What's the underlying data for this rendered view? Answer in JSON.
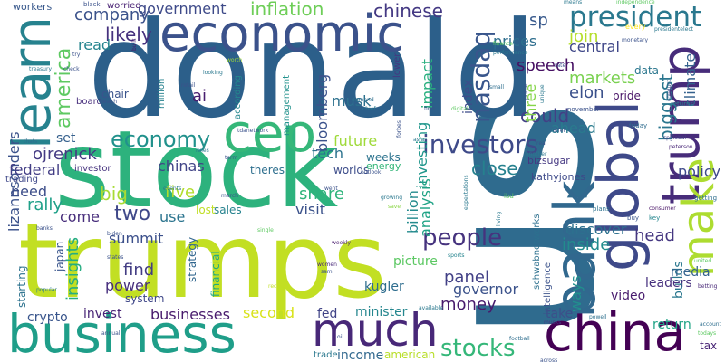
{
  "words": [
    {
      "text": "us",
      "color": "#2f6b8e"
    },
    {
      "text": "donald",
      "color": "#2c5f8a"
    },
    {
      "text": "stock",
      "color": "#2db27d"
    },
    {
      "text": "trumps",
      "color": "#c2df23"
    },
    {
      "text": "business",
      "color": "#1f9e89"
    },
    {
      "text": "economic",
      "color": "#3b528b"
    },
    {
      "text": "china",
      "color": "#440154"
    },
    {
      "text": "much",
      "color": "#482878"
    },
    {
      "text": "global",
      "color": "#3e4989"
    },
    {
      "text": "bank",
      "color": "#31688e"
    },
    {
      "text": "ceo",
      "color": "#35b779"
    },
    {
      "text": "learn",
      "color": "#26828e"
    },
    {
      "text": "trump",
      "color": "#472c7a"
    },
    {
      "text": "make",
      "color": "#addc30"
    },
    {
      "text": "president",
      "color": "#2a788e"
    },
    {
      "text": "economy",
      "color": "#21918c"
    },
    {
      "text": "investors",
      "color": "#3e4a89"
    },
    {
      "text": "people",
      "color": "#46337e"
    },
    {
      "text": "stocks",
      "color": "#35b779"
    },
    {
      "text": "nasdaq",
      "color": "#39568c"
    },
    {
      "text": "america",
      "color": "#5ec962"
    },
    {
      "text": "government",
      "color": "#3e4a89"
    },
    {
      "text": "inflation",
      "color": "#6ece58"
    },
    {
      "text": "chinese",
      "color": "#443983"
    },
    {
      "text": "company",
      "color": "#3b528b"
    },
    {
      "text": "sp",
      "color": "#38598c"
    },
    {
      "text": "likely",
      "color": "#46327e"
    },
    {
      "text": "join",
      "color": "#b5de2b"
    },
    {
      "text": "read",
      "color": "#25848e"
    },
    {
      "text": "prices",
      "color": "#2e6e8e"
    },
    {
      "text": "central",
      "color": "#3f4788"
    },
    {
      "text": "markets",
      "color": "#7ad151"
    },
    {
      "text": "speech",
      "color": "#471063"
    },
    {
      "text": "elon",
      "color": "#3b518b"
    },
    {
      "text": "could",
      "color": "#424086"
    },
    {
      "text": "musk",
      "color": "#2d718e"
    },
    {
      "text": "ai",
      "color": "#481d6f"
    },
    {
      "text": "index",
      "color": "#3e4c8a"
    },
    {
      "text": "impact",
      "color": "#29af7f"
    },
    {
      "text": "three",
      "color": "#86d549"
    },
    {
      "text": "biggest",
      "color": "#2a768e"
    },
    {
      "text": "climate",
      "color": "#34618d"
    },
    {
      "text": "ahead",
      "color": "#2a7b8e"
    },
    {
      "text": "set",
      "color": "#35608d"
    },
    {
      "text": "ojrenick",
      "color": "#443a83"
    },
    {
      "text": "lizannsonders",
      "color": "#3b528b"
    },
    {
      "text": "tech",
      "color": "#2c738e"
    },
    {
      "text": "bloomberg",
      "color": "#3b528b"
    },
    {
      "text": "future",
      "color": "#9fda3a"
    },
    {
      "text": "chinas",
      "color": "#414487"
    },
    {
      "text": "close",
      "color": "#26818e"
    },
    {
      "text": "bizsugar",
      "color": "#453882"
    },
    {
      "text": "kathyjones",
      "color": "#3e4a89"
    },
    {
      "text": "federal",
      "color": "#433e85"
    },
    {
      "text": "need",
      "color": "#3d4e8a"
    },
    {
      "text": "big",
      "color": "#a8db34"
    },
    {
      "text": "five",
      "color": "#b2dd2d"
    },
    {
      "text": "share",
      "color": "#2fb47c"
    },
    {
      "text": "rally",
      "color": "#1fa088"
    },
    {
      "text": "two",
      "color": "#3f4889"
    },
    {
      "text": "billion",
      "color": "#238a8d"
    },
    {
      "text": "investing",
      "color": "#1f968b"
    },
    {
      "text": "analysis",
      "color": "#20a386"
    },
    {
      "text": "visit",
      "color": "#3b528b"
    },
    {
      "text": "come",
      "color": "#472d7b"
    },
    {
      "text": "use",
      "color": "#2b748e"
    },
    {
      "text": "find",
      "color": "#433d84"
    },
    {
      "text": "power",
      "color": "#472f7d"
    },
    {
      "text": "insights",
      "color": "#26ad81"
    },
    {
      "text": "businesses",
      "color": "#481b6d"
    },
    {
      "text": "second",
      "color": "#d8e219"
    },
    {
      "text": "panel",
      "color": "#424086"
    },
    {
      "text": "governor",
      "color": "#3b528b"
    },
    {
      "text": "money",
      "color": "#481a6c"
    },
    {
      "text": "discover",
      "color": "#2d708e"
    },
    {
      "text": "inside",
      "color": "#228c8d"
    },
    {
      "text": "head",
      "color": "#453781"
    },
    {
      "text": "ways",
      "color": "#218f8d"
    },
    {
      "text": "policy",
      "color": "#3e4989"
    },
    {
      "text": "leaders",
      "color": "#46307e"
    },
    {
      "text": "builds",
      "color": "#2a778e"
    },
    {
      "text": "media",
      "color": "#33628d"
    },
    {
      "text": "video",
      "color": "#481c6e"
    },
    {
      "text": "take",
      "color": "#3c4f8a"
    },
    {
      "text": "return",
      "color": "#20a486"
    },
    {
      "text": "tax",
      "color": "#482475"
    },
    {
      "text": "kugler",
      "color": "#2e6d8e"
    },
    {
      "text": "minister",
      "color": "#24868e"
    },
    {
      "text": "picture",
      "color": "#5cc863"
    },
    {
      "text": "income",
      "color": "#31688e"
    },
    {
      "text": "american",
      "color": "#b8de29"
    },
    {
      "text": "fed",
      "color": "#414487"
    },
    {
      "text": "crypto",
      "color": "#39558c"
    },
    {
      "text": "invest",
      "color": "#482576"
    },
    {
      "text": "summit",
      "color": "#3c508b"
    },
    {
      "text": "japan",
      "color": "#39558c"
    },
    {
      "text": "starting",
      "color": "#2c728e"
    },
    {
      "text": "system",
      "color": "#3f4788"
    },
    {
      "text": "strategy",
      "color": "#31668e"
    },
    {
      "text": "financial",
      "color": "#22a884"
    },
    {
      "text": "sales",
      "color": "#26828e"
    },
    {
      "text": "lost",
      "color": "#c0df25"
    },
    {
      "text": "theres",
      "color": "#2e6f8e"
    },
    {
      "text": "worlds",
      "color": "#3d4d8a"
    },
    {
      "text": "weeks",
      "color": "#2c738e"
    },
    {
      "text": "energy",
      "color": "#34b679"
    },
    {
      "text": "trading",
      "color": "#3f4889"
    },
    {
      "text": "investor",
      "color": "#46337e"
    },
    {
      "text": "management",
      "color": "#21918c"
    },
    {
      "text": "according",
      "color": "#24878e"
    },
    {
      "text": "million",
      "color": "#26828e"
    },
    {
      "text": "chair",
      "color": "#3a548c"
    },
    {
      "text": "board",
      "color": "#472e7c"
    },
    {
      "text": "workers",
      "color": "#38588c"
    },
    {
      "text": "black",
      "color": "#3b528b"
    },
    {
      "text": "worried",
      "color": "#482173"
    },
    {
      "text": "schwabnetworks",
      "color": "#2d708e"
    },
    {
      "text": "intelligence",
      "color": "#3b528b"
    },
    {
      "text": "lower",
      "color": "#453781"
    },
    {
      "text": "worth",
      "color": "#a0da39"
    },
    {
      "text": "means",
      "color": "#2a788e"
    },
    {
      "text": "independence",
      "color": "#5ec962"
    },
    {
      "text": "presidentelect",
      "color": "#2a788e"
    },
    {
      "text": "every",
      "color": "#fde725"
    },
    {
      "text": "data",
      "color": "#2a768e"
    },
    {
      "text": "pride",
      "color": "#481467"
    },
    {
      "text": "friday",
      "color": "#2f6c8e"
    },
    {
      "text": "returns",
      "color": "#27808e"
    },
    {
      "text": "november",
      "color": "#3b528b"
    },
    {
      "text": "conduct",
      "color": "#3a548c"
    },
    {
      "text": "spglobal",
      "color": "#414487"
    },
    {
      "text": "peterson",
      "color": "#482677"
    },
    {
      "text": "getting",
      "color": "#2e6e8e"
    },
    {
      "text": "key",
      "color": "#24868e"
    },
    {
      "text": "consumer",
      "color": "#481467"
    },
    {
      "text": "buy",
      "color": "#3a548c"
    },
    {
      "text": "plans",
      "color": "#2c728e"
    },
    {
      "text": "ibd",
      "color": "#5ec962"
    },
    {
      "text": "growing",
      "color": "#2a788e"
    },
    {
      "text": "save",
      "color": "#8bd646"
    },
    {
      "text": "expectations",
      "color": "#2a788e"
    },
    {
      "text": "outlook",
      "color": "#3b528b"
    },
    {
      "text": "sports",
      "color": "#25848e"
    },
    {
      "text": "football",
      "color": "#2e6e8e"
    },
    {
      "text": "across",
      "color": "#3b528b"
    },
    {
      "text": "musks",
      "color": "#443983"
    },
    {
      "text": "powell",
      "color": "#2d708e"
    },
    {
      "text": "todays",
      "color": "#5ec962"
    },
    {
      "text": "account",
      "color": "#2e6e8e"
    },
    {
      "text": "united",
      "color": "#5ec962"
    },
    {
      "text": "betting",
      "color": "#482878"
    },
    {
      "text": "available",
      "color": "#2a788e"
    },
    {
      "text": "sam",
      "color": "#3b528b"
    },
    {
      "text": "women",
      "color": "#482878"
    },
    {
      "text": "weekly",
      "color": "#481c6e"
    },
    {
      "text": "single",
      "color": "#5ec962"
    },
    {
      "text": "record",
      "color": "#c2df23"
    },
    {
      "text": "states",
      "color": "#3b528b"
    },
    {
      "text": "biden",
      "color": "#3b528b"
    },
    {
      "text": "popular",
      "color": "#2a788e"
    },
    {
      "text": "annual",
      "color": "#3b528b"
    },
    {
      "text": "oil",
      "color": "#3b528b"
    },
    {
      "text": "trade",
      "color": "#2a788e"
    },
    {
      "text": "thats",
      "color": "#2e6e8e"
    },
    {
      "text": "banks",
      "color": "#3b528b"
    },
    {
      "text": "treasury",
      "color": "#2a788e"
    },
    {
      "text": "check",
      "color": "#3b528b"
    },
    {
      "text": "try",
      "color": "#3b528b"
    },
    {
      "text": "built",
      "color": "#481c6e"
    },
    {
      "text": "looking",
      "color": "#2a788e"
    },
    {
      "text": "retail",
      "color": "#3b528b"
    },
    {
      "text": "health",
      "color": "#3b528b"
    },
    {
      "text": "tdanetwork",
      "color": "#3b528b"
    },
    {
      "text": "rules",
      "color": "#2a788e"
    },
    {
      "text": "term",
      "color": "#3b528b"
    },
    {
      "text": "events",
      "color": "#2a788e"
    },
    {
      "text": "march",
      "color": "#3b528b"
    },
    {
      "text": "went",
      "color": "#3b528b"
    },
    {
      "text": "demand",
      "color": "#2e6e8e"
    },
    {
      "text": "chief",
      "color": "#2a788e"
    },
    {
      "text": "firm",
      "color": "#3b528b"
    },
    {
      "text": "digital",
      "color": "#5ec962"
    },
    {
      "text": "forbes",
      "color": "#3b528b"
    },
    {
      "text": "asia",
      "color": "#2a788e"
    },
    {
      "text": "real",
      "color": "#3b528b"
    },
    {
      "text": "another",
      "color": "#2a788e"
    },
    {
      "text": "offer",
      "color": "#3b528b"
    },
    {
      "text": "living",
      "color": "#2a788e"
    },
    {
      "text": "finance",
      "color": "#5ec962"
    },
    {
      "text": "performance",
      "color": "#2a788e"
    },
    {
      "text": "small",
      "color": "#2e6e8e"
    },
    {
      "text": "prime",
      "color": "#3b528b"
    },
    {
      "text": "unique",
      "color": "#2a788e"
    },
    {
      "text": "monetary",
      "color": "#3b528b"
    },
    {
      "text": "rate",
      "color": "#3b528b"
    }
  ]
}
